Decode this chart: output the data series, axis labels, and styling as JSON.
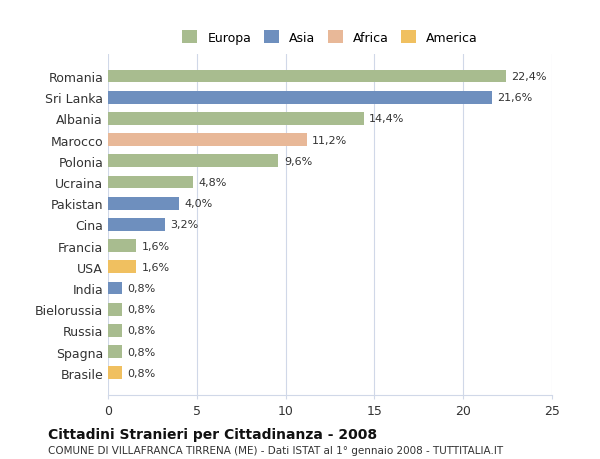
{
  "categories": [
    "Romania",
    "Sri Lanka",
    "Albania",
    "Marocco",
    "Polonia",
    "Ucraina",
    "Pakistan",
    "Cina",
    "Francia",
    "USA",
    "India",
    "Bielorussia",
    "Russia",
    "Spagna",
    "Brasile"
  ],
  "values": [
    22.4,
    21.6,
    14.4,
    11.2,
    9.6,
    4.8,
    4.0,
    3.2,
    1.6,
    1.6,
    0.8,
    0.8,
    0.8,
    0.8,
    0.8
  ],
  "labels": [
    "22,4%",
    "21,6%",
    "14,4%",
    "11,2%",
    "9,6%",
    "4,8%",
    "4,0%",
    "3,2%",
    "1,6%",
    "1,6%",
    "0,8%",
    "0,8%",
    "0,8%",
    "0,8%",
    "0,8%"
  ],
  "colors": [
    "#a8bc8f",
    "#6e8fbe",
    "#a8bc8f",
    "#e8b898",
    "#a8bc8f",
    "#a8bc8f",
    "#6e8fbe",
    "#6e8fbe",
    "#a8bc8f",
    "#f0c060",
    "#6e8fbe",
    "#a8bc8f",
    "#a8bc8f",
    "#a8bc8f",
    "#f0c060"
  ],
  "legend_labels": [
    "Europa",
    "Asia",
    "Africa",
    "America"
  ],
  "legend_colors": [
    "#a8bc8f",
    "#6e8fbe",
    "#e8b898",
    "#f0c060"
  ],
  "title": "Cittadini Stranieri per Cittadinanza - 2008",
  "subtitle": "COMUNE DI VILLAFRANCA TIRRENA (ME) - Dati ISTAT al 1° gennaio 2008 - TUTTITALIA.IT",
  "xlim": [
    0,
    25
  ],
  "xticks": [
    0,
    5,
    10,
    15,
    20,
    25
  ],
  "background_color": "#ffffff",
  "grid_color": "#d0d8e8"
}
